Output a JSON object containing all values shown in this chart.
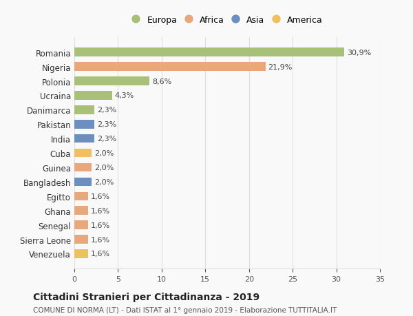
{
  "countries": [
    "Romania",
    "Nigeria",
    "Polonia",
    "Ucraina",
    "Danimarca",
    "Pakistan",
    "India",
    "Cuba",
    "Guinea",
    "Bangladesh",
    "Egitto",
    "Ghana",
    "Senegal",
    "Sierra Leone",
    "Venezuela"
  ],
  "values": [
    30.9,
    21.9,
    8.6,
    4.3,
    2.3,
    2.3,
    2.3,
    2.0,
    2.0,
    2.0,
    1.6,
    1.6,
    1.6,
    1.6,
    1.6
  ],
  "labels": [
    "30,9%",
    "21,9%",
    "8,6%",
    "4,3%",
    "2,3%",
    "2,3%",
    "2,3%",
    "2,0%",
    "2,0%",
    "2,0%",
    "1,6%",
    "1,6%",
    "1,6%",
    "1,6%",
    "1,6%"
  ],
  "continents": [
    "Europa",
    "Africa",
    "Europa",
    "Europa",
    "Europa",
    "Asia",
    "Asia",
    "America",
    "Africa",
    "Asia",
    "Africa",
    "Africa",
    "Africa",
    "Africa",
    "America"
  ],
  "colors": {
    "Europa": "#a8c07a",
    "Africa": "#e8a87c",
    "Asia": "#6b8fc0",
    "America": "#f0c060"
  },
  "legend_order": [
    "Europa",
    "Africa",
    "Asia",
    "America"
  ],
  "title": "Cittadini Stranieri per Cittadinanza - 2019",
  "subtitle": "COMUNE DI NORMA (LT) - Dati ISTAT al 1° gennaio 2019 - Elaborazione TUTTITALIA.IT",
  "xlim": [
    0,
    35
  ],
  "xticks": [
    0,
    5,
    10,
    15,
    20,
    25,
    30,
    35
  ],
  "background_color": "#f9f9f9",
  "grid_color": "#dddddd"
}
